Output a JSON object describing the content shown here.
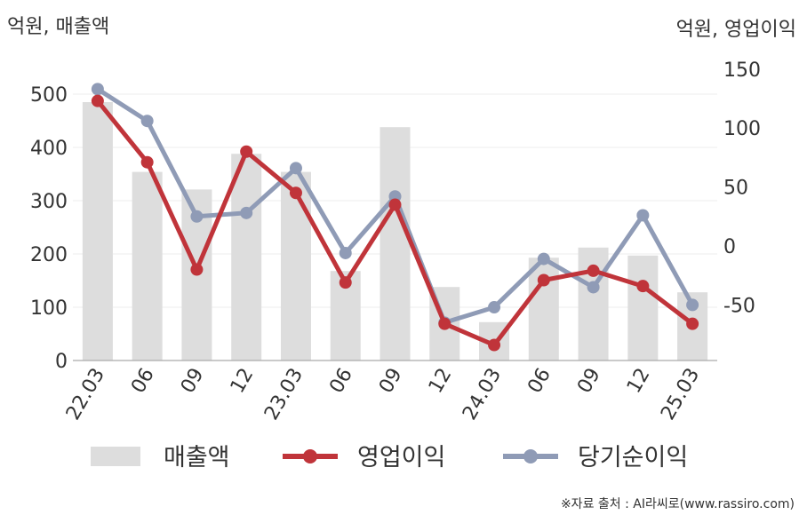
{
  "chart_data": {
    "type": "bar",
    "left_axis_title": "억원, 매출액",
    "right_axis_title": "억원, 영업이익",
    "categories": [
      "22.03",
      "06",
      "09",
      "12",
      "23.03",
      "06",
      "09",
      "12",
      "24.03",
      "06",
      "09",
      "12",
      "25.03"
    ],
    "left_ylim": [
      0,
      550
    ],
    "left_ticks": [
      0,
      100,
      200,
      300,
      400,
      500
    ],
    "right_ylim": [
      -100,
      160
    ],
    "right_ticks": [
      -50,
      0,
      50,
      100,
      150
    ],
    "grid": true,
    "legend_position": "bottom",
    "series": [
      {
        "name": "매출액",
        "kind": "bar",
        "axis": "left",
        "color": "#dddddd",
        "values": [
          485,
          354,
          321,
          388,
          354,
          168,
          438,
          138,
          72,
          193,
          212,
          197,
          128
        ]
      },
      {
        "name": "영업이익",
        "kind": "line",
        "axis": "right",
        "color": "#c0343a",
        "values": [
          123,
          71,
          -20,
          80,
          45,
          -31,
          35,
          -66,
          -84,
          -29,
          -21,
          -34,
          -66
        ]
      },
      {
        "name": "당기순이익",
        "kind": "line",
        "axis": "right",
        "color": "#8f9bb6",
        "values": [
          133,
          106,
          25,
          28,
          66,
          -6,
          42,
          -65,
          -52,
          -11,
          -35,
          26,
          -50
        ]
      }
    ],
    "source_note": "※자료 출처 : AI라씨로(www.rassiro.com)"
  }
}
